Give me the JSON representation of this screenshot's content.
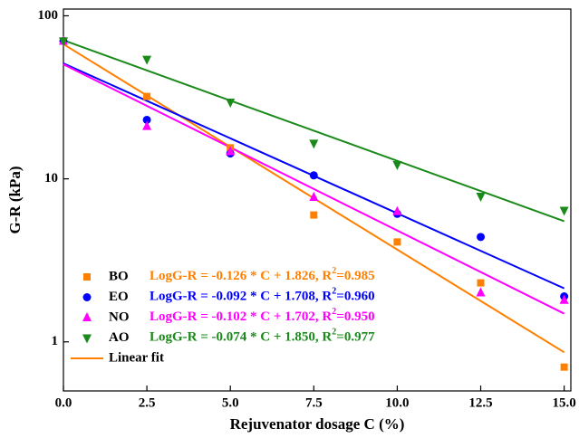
{
  "chart_data": {
    "type": "scatter",
    "x_label": "Rejuvenator dosage C (%)",
    "y_label": "G-R (kPa)",
    "log_y": true,
    "legend_position": "lower left",
    "xlim": [
      0,
      15.2
    ],
    "ylim": [
      0.5,
      110
    ],
    "xticks": [
      {
        "value": 0,
        "label": "0.0"
      },
      2.5,
      {
        "value": 5,
        "label": "5.0"
      },
      7.5,
      {
        "value": 10,
        "label": "10.0"
      },
      12.5,
      {
        "value": 15,
        "label": "15.0"
      }
    ],
    "yticks": [
      1,
      10,
      100
    ],
    "x": [
      0,
      2.5,
      5,
      7.5,
      10,
      12.5,
      15
    ],
    "fit_x": [
      0,
      15
    ],
    "fit_label": "Linear fit",
    "series": [
      {
        "name": "BO",
        "color": "#ff8000",
        "marker": "square",
        "values": [
          70,
          32,
          15.5,
          6.0,
          4.1,
          2.3,
          0.7
        ],
        "equation": [
          "LogG-R = -0.126 * C + 1.826, R",
          "2",
          "=0.985"
        ],
        "fit": [
          67.0,
          0.863
        ]
      },
      {
        "name": "EO",
        "color": "#0000ff",
        "marker": "circle",
        "values": [
          70,
          23,
          14.3,
          10.5,
          6.1,
          4.4,
          1.9
        ],
        "equation": [
          "LogG-R = -0.092 * C + 1.708, R",
          "2",
          "=0.960"
        ],
        "fit": [
          51.1,
          2.13
        ]
      },
      {
        "name": "NO",
        "color": "#ff00ff",
        "marker": "triangle-up",
        "values": [
          70,
          21,
          14.7,
          7.7,
          6.3,
          2.0,
          1.8
        ],
        "equation": [
          "LogG-R = -0.102 * C + 1.702, R",
          "2",
          "=0.950"
        ],
        "fit": [
          50.4,
          1.49
        ]
      },
      {
        "name": "AO",
        "color": "#1a8a1a",
        "marker": "triangle-down",
        "values": [
          70,
          54,
          29.5,
          16.5,
          12.2,
          7.8,
          6.4
        ],
        "equation": [
          "LogG-R = -0.074 * C + 1.850, R",
          "2",
          "=0.977"
        ],
        "fit": [
          70.8,
          5.5
        ]
      }
    ],
    "fit_color": "#ff8000"
  }
}
